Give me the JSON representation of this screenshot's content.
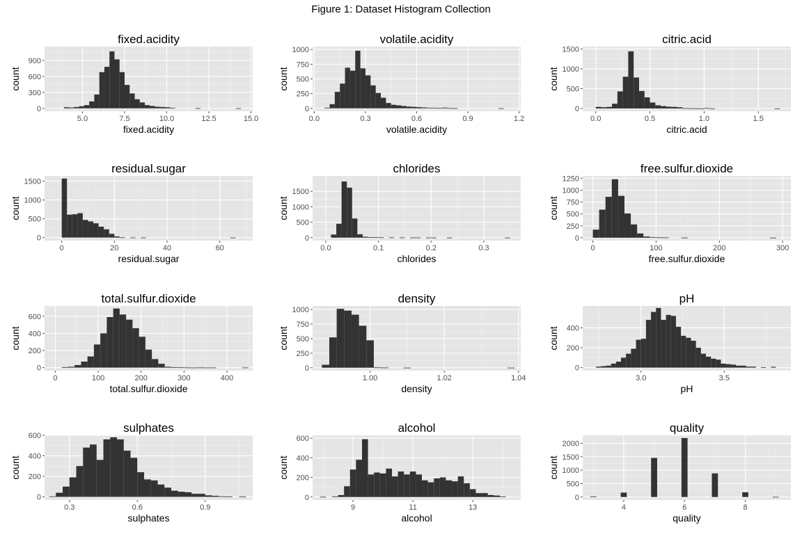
{
  "figure_title": "Figure 1: Dataset Histogram Collection",
  "chart_data": [
    {
      "type": "bar",
      "title": "fixed.acidity",
      "xlabel": "fixed.acidity",
      "ylabel": "count",
      "xlim": [
        2.75,
        15.1
      ],
      "ylim": [
        -55,
        1160
      ],
      "binwidth": 0.3,
      "xticks": [
        5.0,
        7.5,
        10.0,
        12.5,
        15.0
      ],
      "xtick_labels": [
        "5.0",
        "7.5",
        "10.0",
        "12.5",
        "15.0"
      ],
      "yticks": [
        0,
        300,
        600,
        900
      ],
      "bins": [
        [
          4.05,
          20
        ],
        [
          4.35,
          15
        ],
        [
          4.65,
          25
        ],
        [
          4.95,
          40
        ],
        [
          5.25,
          60
        ],
        [
          5.55,
          130
        ],
        [
          5.85,
          260
        ],
        [
          6.15,
          680
        ],
        [
          6.45,
          780
        ],
        [
          6.75,
          1070
        ],
        [
          7.05,
          920
        ],
        [
          7.35,
          680
        ],
        [
          7.65,
          440
        ],
        [
          7.95,
          280
        ],
        [
          8.25,
          170
        ],
        [
          8.55,
          110
        ],
        [
          8.85,
          60
        ],
        [
          9.15,
          45
        ],
        [
          9.45,
          30
        ],
        [
          9.75,
          25
        ],
        [
          10.05,
          20
        ],
        [
          10.35,
          10
        ],
        [
          11.85,
          3
        ],
        [
          14.25,
          1
        ]
      ]
    },
    {
      "type": "bar",
      "title": "volatile.acidity",
      "xlabel": "volatile.acidity",
      "ylabel": "count",
      "xlim": [
        -0.01,
        1.21
      ],
      "ylim": [
        -50,
        1050
      ],
      "binwidth": 0.03,
      "xticks": [
        0.0,
        0.3,
        0.6,
        0.9,
        1.2
      ],
      "xtick_labels": [
        "0.0",
        "0.3",
        "0.6",
        "0.9",
        "1.2"
      ],
      "yticks": [
        0,
        250,
        500,
        750,
        1000
      ],
      "bins": [
        [
          0.075,
          10
        ],
        [
          0.105,
          70
        ],
        [
          0.135,
          280
        ],
        [
          0.165,
          420
        ],
        [
          0.195,
          690
        ],
        [
          0.225,
          640
        ],
        [
          0.255,
          980
        ],
        [
          0.285,
          680
        ],
        [
          0.315,
          560
        ],
        [
          0.345,
          390
        ],
        [
          0.375,
          260
        ],
        [
          0.405,
          180
        ],
        [
          0.435,
          90
        ],
        [
          0.465,
          60
        ],
        [
          0.495,
          50
        ],
        [
          0.525,
          40
        ],
        [
          0.555,
          30
        ],
        [
          0.585,
          25
        ],
        [
          0.615,
          20
        ],
        [
          0.645,
          15
        ],
        [
          0.675,
          10
        ],
        [
          0.705,
          8
        ],
        [
          0.735,
          5
        ],
        [
          0.765,
          12
        ],
        [
          0.795,
          4
        ],
        [
          0.825,
          2
        ],
        [
          1.095,
          1
        ]
      ]
    },
    {
      "type": "bar",
      "title": "citric.acid",
      "xlabel": "citric.acid",
      "ylabel": "count",
      "xlim": [
        -0.12,
        1.8
      ],
      "ylim": [
        -70,
        1560
      ],
      "binwidth": 0.05,
      "xticks": [
        0.0,
        0.5,
        1.0,
        1.5
      ],
      "xtick_labels": [
        "0.0",
        "0.5",
        "1.0",
        "1.5"
      ],
      "yticks": [
        0,
        500,
        1000,
        1500
      ],
      "bins": [
        [
          0.025,
          40
        ],
        [
          0.075,
          30
        ],
        [
          0.125,
          40
        ],
        [
          0.175,
          120
        ],
        [
          0.225,
          430
        ],
        [
          0.275,
          800
        ],
        [
          0.325,
          1440
        ],
        [
          0.375,
          780
        ],
        [
          0.425,
          440
        ],
        [
          0.475,
          280
        ],
        [
          0.525,
          150
        ],
        [
          0.575,
          80
        ],
        [
          0.625,
          60
        ],
        [
          0.675,
          45
        ],
        [
          0.725,
          40
        ],
        [
          0.775,
          30
        ],
        [
          0.825,
          8
        ],
        [
          0.875,
          5
        ],
        [
          0.925,
          3
        ],
        [
          0.975,
          2
        ],
        [
          1.025,
          12
        ],
        [
          1.075,
          2
        ],
        [
          1.675,
          1
        ]
      ]
    },
    {
      "type": "bar",
      "title": "residual.sugar",
      "xlabel": "residual.sugar",
      "ylabel": "count",
      "xlim": [
        -6.5,
        72.5
      ],
      "ylim": [
        -80,
        1640
      ],
      "binwidth": 2,
      "xticks": [
        0,
        20,
        40,
        60
      ],
      "xtick_labels": [
        "0",
        "20",
        "40",
        "60"
      ],
      "yticks": [
        0,
        500,
        1000,
        1500
      ],
      "bins": [
        [
          1,
          1570
        ],
        [
          3,
          610
        ],
        [
          5,
          620
        ],
        [
          7,
          650
        ],
        [
          9,
          470
        ],
        [
          11,
          430
        ],
        [
          13,
          380
        ],
        [
          15,
          290
        ],
        [
          17,
          220
        ],
        [
          19,
          100
        ],
        [
          21,
          30
        ],
        [
          23,
          5
        ],
        [
          27,
          2
        ],
        [
          31,
          2
        ],
        [
          65,
          1
        ]
      ]
    },
    {
      "type": "bar",
      "title": "chlorides",
      "xlabel": "chlorides",
      "ylabel": "count",
      "xlim": [
        -0.025,
        0.37
      ],
      "ylim": [
        -95,
        2000
      ],
      "binwidth": 0.01,
      "xticks": [
        0.0,
        0.1,
        0.2,
        0.3
      ],
      "xtick_labels": [
        "0.0",
        "0.1",
        "0.2",
        "0.3"
      ],
      "yticks": [
        0,
        500,
        1000,
        1500
      ],
      "bins": [
        [
          0.015,
          100
        ],
        [
          0.025,
          450
        ],
        [
          0.035,
          1820
        ],
        [
          0.045,
          1620
        ],
        [
          0.055,
          620
        ],
        [
          0.065,
          110
        ],
        [
          0.075,
          30
        ],
        [
          0.085,
          15
        ],
        [
          0.095,
          12
        ],
        [
          0.105,
          10
        ],
        [
          0.125,
          8
        ],
        [
          0.145,
          6
        ],
        [
          0.165,
          5
        ],
        [
          0.175,
          5
        ],
        [
          0.195,
          3
        ],
        [
          0.205,
          3
        ],
        [
          0.235,
          2
        ],
        [
          0.345,
          1
        ]
      ]
    },
    {
      "type": "bar",
      "title": "free.sulfur.dioxide",
      "xlabel": "free.sulfur.dioxide",
      "ylabel": "count",
      "xlim": [
        -16,
        313
      ],
      "ylim": [
        -60,
        1300
      ],
      "binwidth": 10,
      "xticks": [
        0,
        100,
        200,
        300
      ],
      "xtick_labels": [
        "0",
        "100",
        "200",
        "300"
      ],
      "yticks": [
        0,
        250,
        500,
        750,
        1000,
        1250
      ],
      "bins": [
        [
          5,
          170
        ],
        [
          15,
          590
        ],
        [
          25,
          860
        ],
        [
          35,
          1230
        ],
        [
          45,
          880
        ],
        [
          55,
          510
        ],
        [
          65,
          280
        ],
        [
          75,
          90
        ],
        [
          85,
          25
        ],
        [
          95,
          12
        ],
        [
          105,
          8
        ],
        [
          115,
          5
        ],
        [
          145,
          3
        ],
        [
          285,
          1
        ]
      ]
    },
    {
      "type": "bar",
      "title": "total.sulfur.dioxide",
      "xlabel": "total.sulfur.dioxide",
      "ylabel": "count",
      "xlim": [
        -25,
        460
      ],
      "ylim": [
        -35,
        720
      ],
      "binwidth": 15,
      "xticks": [
        0,
        100,
        200,
        300,
        400
      ],
      "xtick_labels": [
        "0",
        "100",
        "200",
        "300",
        "400"
      ],
      "yticks": [
        0,
        200,
        400,
        600
      ],
      "bins": [
        [
          22.5,
          5
        ],
        [
          37.5,
          10
        ],
        [
          52.5,
          30
        ],
        [
          67.5,
          70
        ],
        [
          82.5,
          130
        ],
        [
          97.5,
          270
        ],
        [
          112.5,
          400
        ],
        [
          127.5,
          590
        ],
        [
          142.5,
          690
        ],
        [
          157.5,
          620
        ],
        [
          172.5,
          560
        ],
        [
          187.5,
          460
        ],
        [
          202.5,
          360
        ],
        [
          217.5,
          210
        ],
        [
          232.5,
          100
        ],
        [
          247.5,
          45
        ],
        [
          262.5,
          10
        ],
        [
          277.5,
          5
        ],
        [
          292.5,
          3
        ],
        [
          307.5,
          2
        ],
        [
          322.5,
          1
        ],
        [
          337.5,
          2
        ],
        [
          352.5,
          1
        ],
        [
          367.5,
          1
        ],
        [
          442.5,
          1
        ]
      ]
    },
    {
      "type": "bar",
      "title": "density",
      "xlabel": "density",
      "ylabel": "count",
      "xlim": [
        0.9845,
        1.0406
      ],
      "ylim": [
        -50,
        1060
      ],
      "binwidth": 0.002,
      "xticks": [
        1.0,
        1.02,
        1.04
      ],
      "xtick_labels": [
        "1.00",
        "1.02",
        "1.04"
      ],
      "yticks": [
        0,
        250,
        500,
        750,
        1000
      ],
      "bins": [
        [
          0.988,
          50
        ],
        [
          0.99,
          520
        ],
        [
          0.992,
          1010
        ],
        [
          0.994,
          980
        ],
        [
          0.996,
          910
        ],
        [
          0.998,
          720
        ],
        [
          1.0,
          470
        ],
        [
          1.002,
          5
        ],
        [
          1.004,
          3
        ],
        [
          1.01,
          1
        ],
        [
          1.038,
          1
        ]
      ]
    },
    {
      "type": "bar",
      "title": "pH",
      "xlabel": "pH",
      "ylabel": "count",
      "xlim": [
        2.65,
        3.9
      ],
      "ylim": [
        -30,
        620
      ],
      "binwidth": 0.03,
      "xticks": [
        3.0,
        3.5
      ],
      "xtick_labels": [
        "3.0",
        "3.5"
      ],
      "yticks": [
        0,
        200,
        400
      ],
      "bins": [
        [
          2.745,
          10
        ],
        [
          2.775,
          15
        ],
        [
          2.805,
          20
        ],
        [
          2.835,
          40
        ],
        [
          2.865,
          60
        ],
        [
          2.895,
          100
        ],
        [
          2.925,
          140
        ],
        [
          2.955,
          190
        ],
        [
          2.985,
          280
        ],
        [
          3.015,
          290
        ],
        [
          3.045,
          480
        ],
        [
          3.075,
          560
        ],
        [
          3.105,
          600
        ],
        [
          3.135,
          480
        ],
        [
          3.165,
          530
        ],
        [
          3.195,
          520
        ],
        [
          3.225,
          410
        ],
        [
          3.255,
          320
        ],
        [
          3.285,
          300
        ],
        [
          3.315,
          270
        ],
        [
          3.345,
          200
        ],
        [
          3.375,
          140
        ],
        [
          3.405,
          110
        ],
        [
          3.435,
          90
        ],
        [
          3.465,
          80
        ],
        [
          3.495,
          40
        ],
        [
          3.525,
          35
        ],
        [
          3.555,
          30
        ],
        [
          3.585,
          20
        ],
        [
          3.615,
          20
        ],
        [
          3.645,
          10
        ],
        [
          3.675,
          10
        ],
        [
          3.735,
          5
        ],
        [
          3.795,
          8
        ]
      ]
    },
    {
      "type": "bar",
      "title": "sulphates",
      "xlabel": "sulphates",
      "ylabel": "count",
      "xlim": [
        0.19,
        1.11
      ],
      "ylim": [
        -30,
        600
      ],
      "binwidth": 0.03,
      "xticks": [
        0.3,
        0.6,
        0.9
      ],
      "xtick_labels": [
        "0.3",
        "0.6",
        "0.9"
      ],
      "yticks": [
        0,
        200,
        400,
        600
      ],
      "bins": [
        [
          0.225,
          5
        ],
        [
          0.255,
          40
        ],
        [
          0.285,
          100
        ],
        [
          0.315,
          190
        ],
        [
          0.345,
          300
        ],
        [
          0.375,
          480
        ],
        [
          0.405,
          510
        ],
        [
          0.435,
          360
        ],
        [
          0.465,
          560
        ],
        [
          0.495,
          580
        ],
        [
          0.525,
          560
        ],
        [
          0.555,
          450
        ],
        [
          0.585,
          380
        ],
        [
          0.615,
          240
        ],
        [
          0.645,
          170
        ],
        [
          0.675,
          160
        ],
        [
          0.705,
          120
        ],
        [
          0.735,
          90
        ],
        [
          0.765,
          60
        ],
        [
          0.795,
          50
        ],
        [
          0.825,
          45
        ],
        [
          0.855,
          30
        ],
        [
          0.885,
          30
        ],
        [
          0.915,
          15
        ],
        [
          0.945,
          10
        ],
        [
          0.975,
          5
        ],
        [
          1.005,
          3
        ],
        [
          1.065,
          2
        ]
      ]
    },
    {
      "type": "bar",
      "title": "alcohol",
      "xlabel": "alcohol",
      "ylabel": "count",
      "xlim": [
        7.65,
        14.6
      ],
      "ylim": [
        -30,
        630
      ],
      "binwidth": 0.2,
      "xticks": [
        9,
        11,
        13
      ],
      "xtick_labels": [
        "9",
        "11",
        "13"
      ],
      "yticks": [
        0,
        200,
        400,
        600
      ],
      "bins": [
        [
          8.0,
          2
        ],
        [
          8.4,
          5
        ],
        [
          8.6,
          20
        ],
        [
          8.8,
          110
        ],
        [
          9.0,
          280
        ],
        [
          9.2,
          380
        ],
        [
          9.4,
          590
        ],
        [
          9.6,
          230
        ],
        [
          9.8,
          250
        ],
        [
          10.0,
          240
        ],
        [
          10.2,
          290
        ],
        [
          10.4,
          210
        ],
        [
          10.6,
          260
        ],
        [
          10.8,
          230
        ],
        [
          11.0,
          260
        ],
        [
          11.2,
          230
        ],
        [
          11.4,
          170
        ],
        [
          11.6,
          150
        ],
        [
          11.8,
          190
        ],
        [
          12.0,
          200
        ],
        [
          12.2,
          170
        ],
        [
          12.4,
          160
        ],
        [
          12.6,
          210
        ],
        [
          12.8,
          140
        ],
        [
          13.0,
          80
        ],
        [
          13.2,
          40
        ],
        [
          13.4,
          40
        ],
        [
          13.6,
          20
        ],
        [
          13.8,
          15
        ],
        [
          14.0,
          5
        ]
      ]
    },
    {
      "type": "bar",
      "title": "quality",
      "xlabel": "quality",
      "ylabel": "count",
      "xlim": [
        2.65,
        9.5
      ],
      "ylim": [
        -110,
        2300
      ],
      "binwidth": 0.2,
      "xticks": [
        4,
        6,
        8
      ],
      "xtick_labels": [
        "4",
        "6",
        "8"
      ],
      "yticks": [
        0,
        500,
        1000,
        1500,
        2000
      ],
      "bins": [
        [
          3.0,
          20
        ],
        [
          4.0,
          163
        ],
        [
          5.0,
          1457
        ],
        [
          6.0,
          2198
        ],
        [
          7.0,
          880
        ],
        [
          8.0,
          175
        ],
        [
          9.0,
          5
        ]
      ]
    }
  ]
}
